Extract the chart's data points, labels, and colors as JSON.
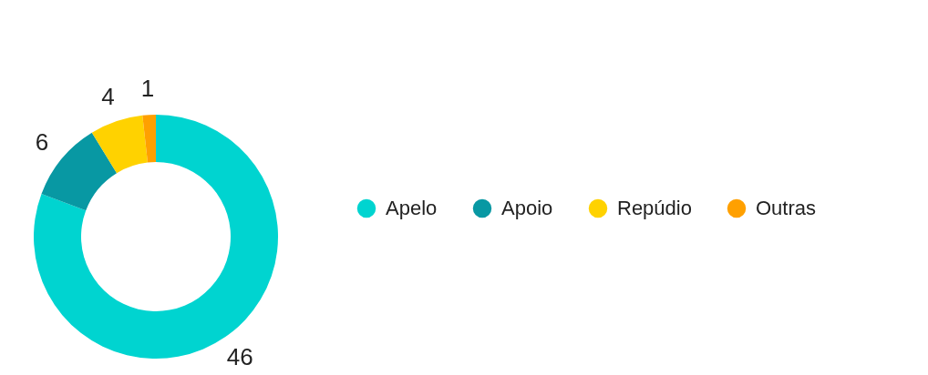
{
  "chart_data": {
    "type": "donut",
    "categories": [
      "Apelo",
      "Apoio",
      "Repúdio",
      "Outras"
    ],
    "values": [
      46,
      6,
      4,
      1
    ],
    "colors": [
      "#00d4d0",
      "#0898a3",
      "#ffd200",
      "#ffa000"
    ],
    "data_labels": true,
    "legend": "right"
  }
}
